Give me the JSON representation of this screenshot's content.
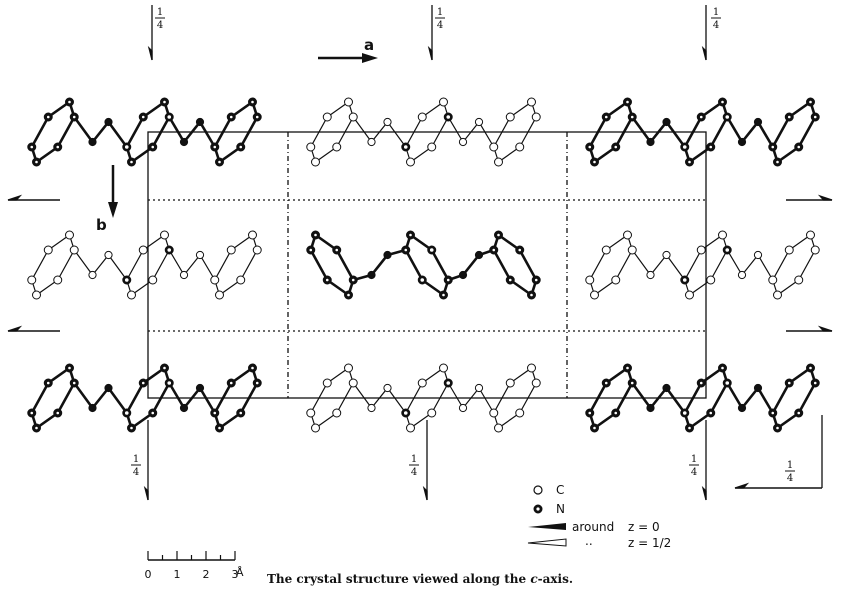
{
  "axes": {
    "a": "a",
    "b": "b"
  },
  "symmetry_labels": [
    {
      "numerator": "1",
      "denominator": "4"
    },
    {
      "numerator": "1",
      "denominator": "4"
    },
    {
      "numerator": "1",
      "denominator": "4"
    },
    {
      "numerator": "1",
      "denominator": "4"
    },
    {
      "numerator": "1",
      "denominator": "4"
    },
    {
      "numerator": "1",
      "denominator": "4"
    },
    {
      "numerator": "1",
      "denominator": "4"
    }
  ],
  "legend": {
    "atoms": [
      "C",
      "N"
    ],
    "rotation": [
      {
        "label": "around",
        "z": "z = 0"
      },
      {
        "label": "..",
        "z": "z = 1/2"
      }
    ]
  },
  "scale": {
    "ticks": [
      "0",
      "1",
      "2",
      "3"
    ],
    "unit": "Å"
  },
  "caption": {
    "prefix": "The crystal structure viewed along the ",
    "axis": "c",
    "suffix": "-axis."
  }
}
